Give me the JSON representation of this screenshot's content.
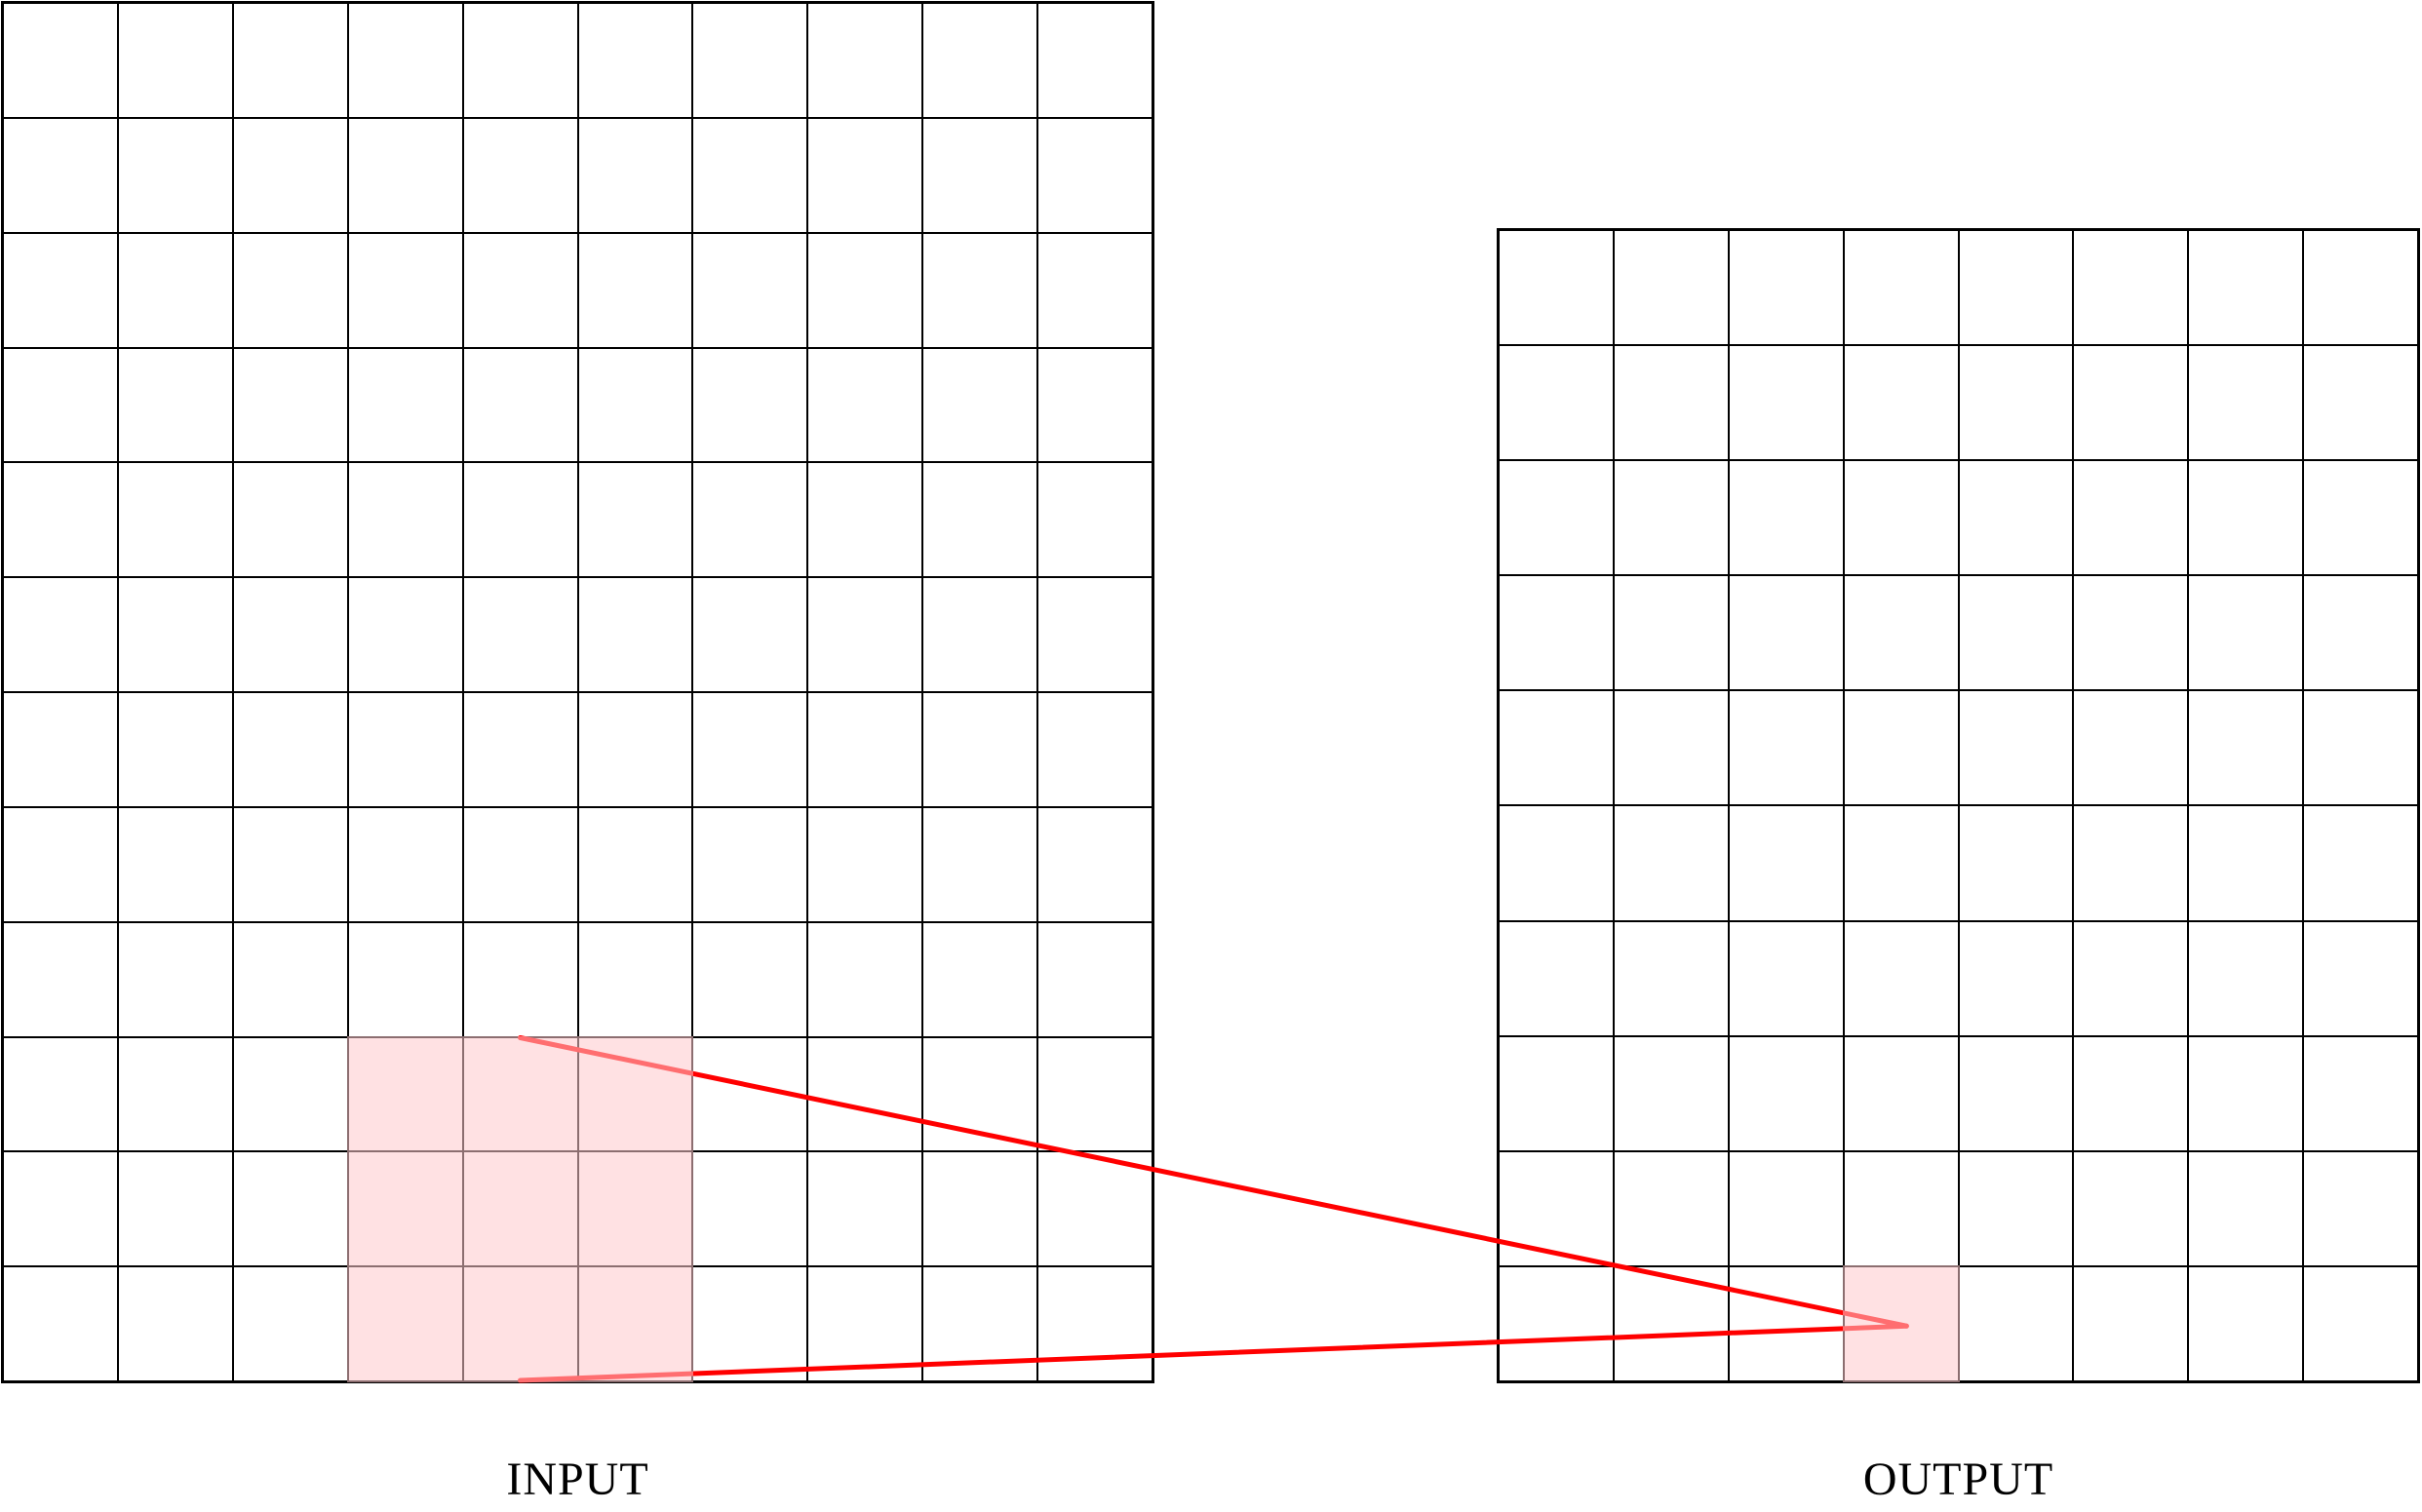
{
  "figure": {
    "grids": [
      {
        "id": "input",
        "label": "INPUT",
        "columns": 10,
        "rows": 12,
        "highlight": {
          "col_start": 4,
          "col_end": 6,
          "row_start": 10,
          "row_end": 12
        }
      },
      {
        "id": "output",
        "label": "OUTPUT",
        "columns": 8,
        "rows": 10,
        "highlight": {
          "col_start": 4,
          "col_end": 4,
          "row_start": 10,
          "row_end": 10
        }
      }
    ],
    "projection": {
      "from": "input-highlight",
      "to": "output-highlight",
      "line_count": 2
    },
    "colors": {
      "background": "#ffffff",
      "grid_line": "#000000",
      "cell_fill": "#ffffff",
      "highlight_fill": "rgba(255,200,204,0.55)",
      "projection_line": "#ff0000",
      "label_color": "#000000"
    },
    "style": {
      "projection_line_width": 5
    }
  }
}
